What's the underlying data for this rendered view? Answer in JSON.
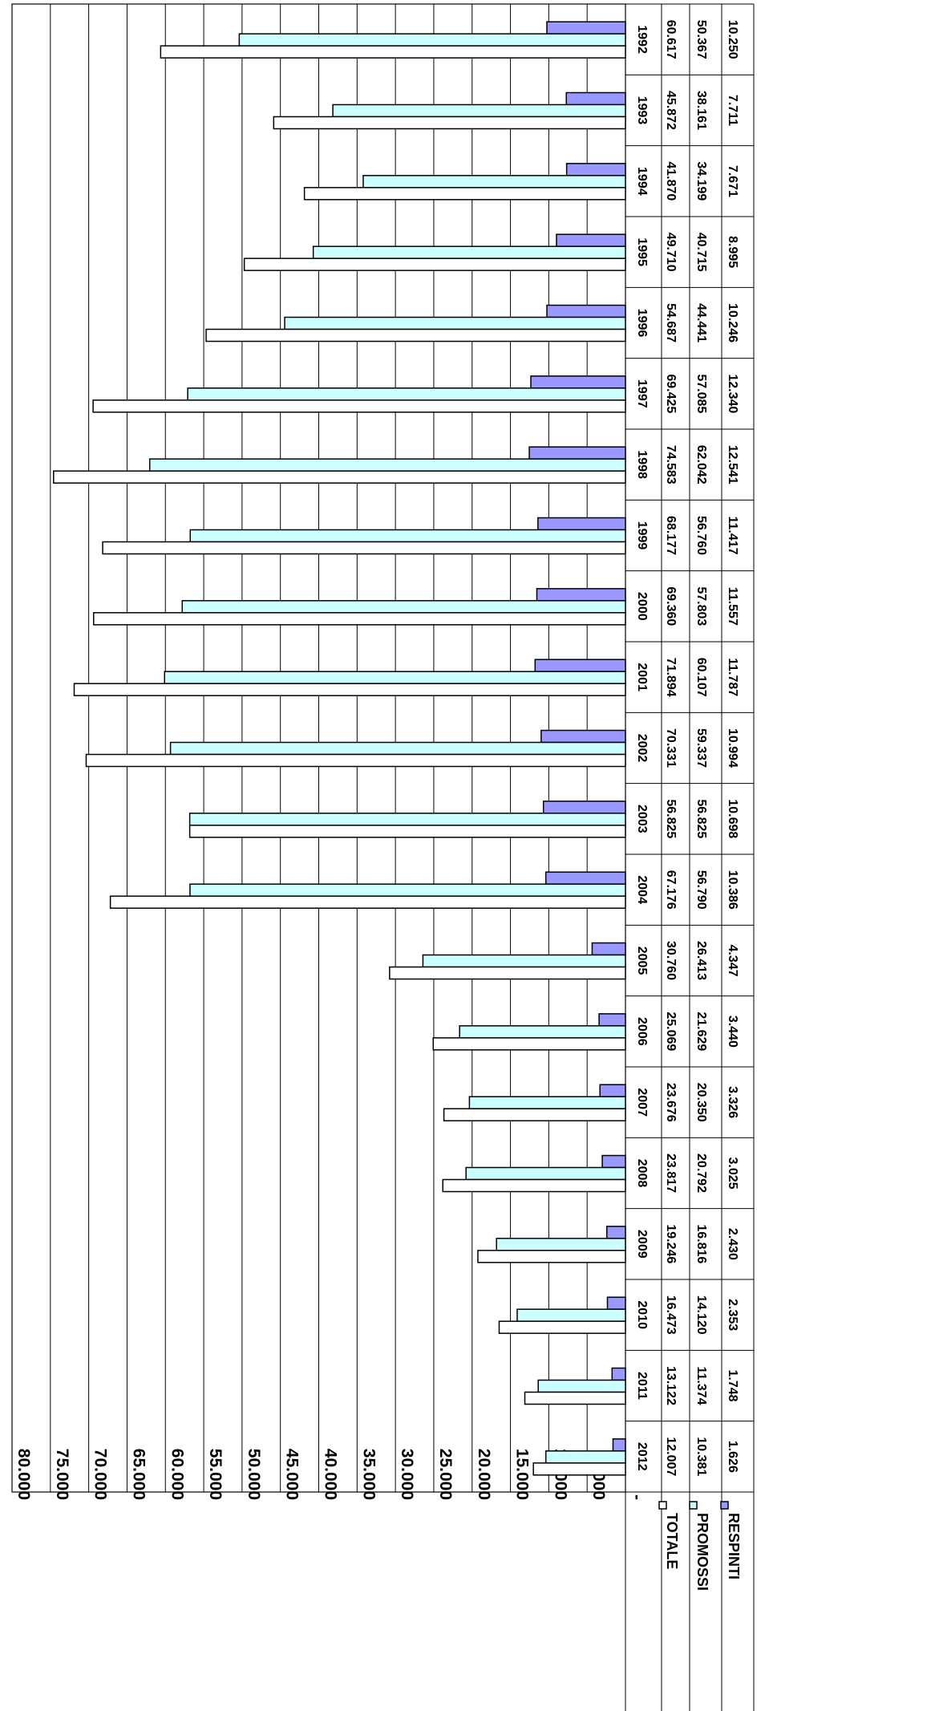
{
  "chart_data": {
    "type": "bar",
    "orientation": "horizontal",
    "rotated": "90deg clockwise",
    "title": "",
    "xlabel": "",
    "ylabel": "",
    "xlim": [
      0,
      80000
    ],
    "tick_labels": [
      "-",
      "5.000",
      "10.000",
      "15.000",
      "20.000",
      "25.000",
      "30.000",
      "35.000",
      "40.000",
      "45.000",
      "50.000",
      "55.000",
      "60.000",
      "65.000",
      "70.000",
      "75.000",
      "80.000"
    ],
    "grid": true,
    "legend": "data table",
    "categories": [
      "1992",
      "1993",
      "1994",
      "1995",
      "1996",
      "1997",
      "1998",
      "1999",
      "2000",
      "2001",
      "2002",
      "2003",
      "2004",
      "2005",
      "2006",
      "2007",
      "2008",
      "2009",
      "2010",
      "2011",
      "2012"
    ],
    "series": [
      {
        "name": "TOTALE",
        "color": "#ffffff",
        "values": [
          60617,
          45872,
          41870,
          49710,
          54687,
          69425,
          74583,
          68177,
          69360,
          71894,
          70331,
          56825,
          67176,
          30760,
          25069,
          23676,
          23817,
          19246,
          16473,
          13122,
          12007
        ],
        "labels": [
          "60.617",
          "45.872",
          "41.870",
          "49.710",
          "54.687",
          "69.425",
          "74.583",
          "68.177",
          "69.360",
          "71.894",
          "70.331",
          "56.825",
          "67.176",
          "30.760",
          "25.069",
          "23.676",
          "23.817",
          "19.246",
          "16.473",
          "13.122",
          "12.007"
        ]
      },
      {
        "name": "PROMOSSI",
        "color": "#ccffff",
        "values": [
          50367,
          38161,
          34199,
          40715,
          44441,
          57085,
          62042,
          56760,
          57803,
          60107,
          59337,
          56825,
          56790,
          26413,
          21629,
          20350,
          20792,
          16816,
          14120,
          11374,
          10381
        ],
        "labels": [
          "50.367",
          "38.161",
          "34.199",
          "40.715",
          "44.441",
          "57.085",
          "62.042",
          "56.760",
          "57.803",
          "60.107",
          "59.337",
          "56.825",
          "56.790",
          "26.413",
          "21.629",
          "20.350",
          "20.792",
          "16.816",
          "14.120",
          "11.374",
          "10.381"
        ]
      },
      {
        "name": "RESPINTI",
        "color": "#9999ff",
        "values": [
          10250,
          7711,
          7671,
          8995,
          10246,
          12340,
          12541,
          11417,
          11557,
          11787,
          10994,
          10698,
          10386,
          4347,
          3440,
          3326,
          3025,
          2430,
          2353,
          1748,
          1626
        ],
        "labels": [
          "10.250",
          "7.711",
          "7.671",
          "8.995",
          "10.246",
          "12.340",
          "12.541",
          "11.417",
          "11.557",
          "11.787",
          "10.994",
          "10.698",
          "10.386",
          "4.347",
          "3.440",
          "3.326",
          "3.025",
          "2.430",
          "2.353",
          "1.748",
          "1.626"
        ]
      }
    ]
  }
}
